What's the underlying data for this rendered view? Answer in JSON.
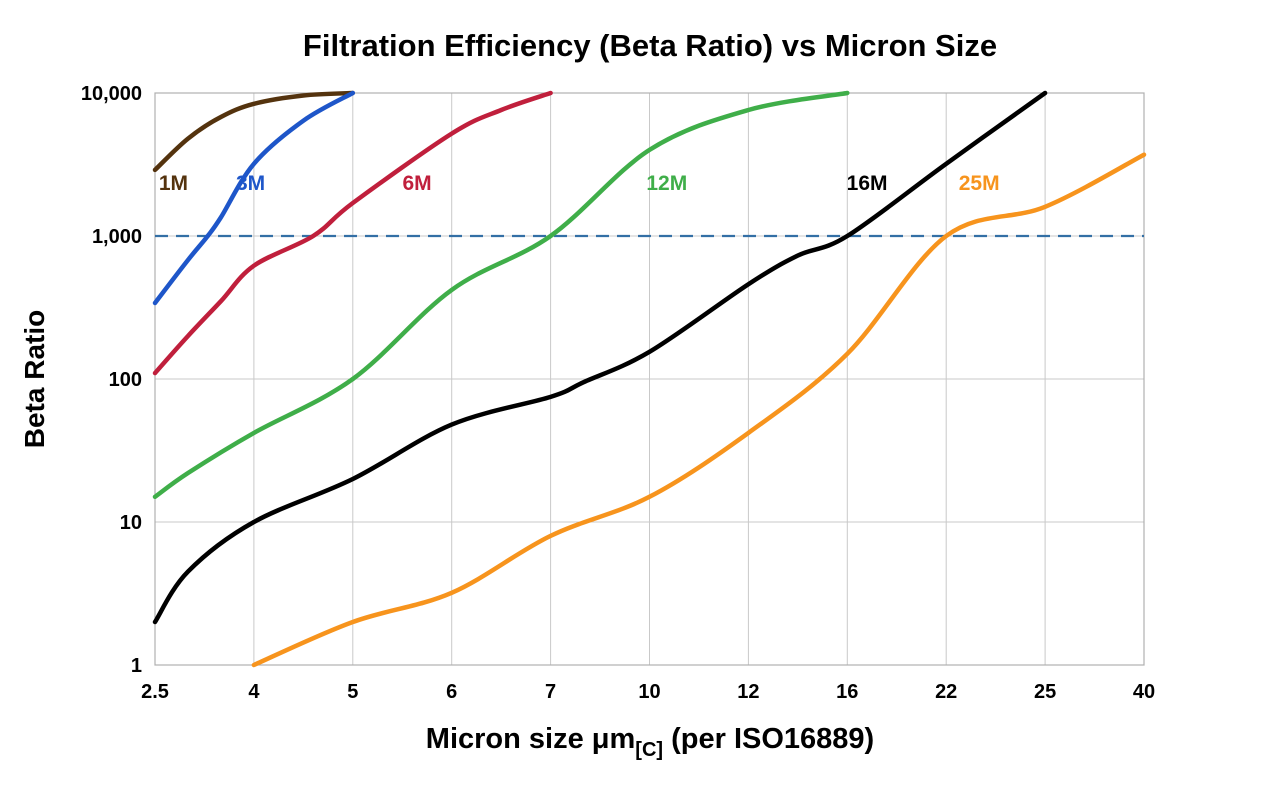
{
  "chart_data": {
    "type": "line",
    "title": "Filtration Efficiency (Beta Ratio) vs Micron Size",
    "xlabel": "Micron size μm[C] (per ISO16889)",
    "xlabel_main": "Micron size μm",
    "xlabel_sub": "[C]",
    "xlabel_rest": " (per ISO16889)",
    "ylabel": "Beta Ratio",
    "x_axis_note": "non-linear axis with equally spaced ticks",
    "x_ticks": [
      2.5,
      4,
      5,
      6,
      7,
      10,
      12,
      16,
      22,
      25,
      40
    ],
    "x_tick_labels": [
      "2.5",
      "4",
      "5",
      "6",
      "7",
      "10",
      "12",
      "16",
      "22",
      "25",
      "40"
    ],
    "y_scale": "log",
    "y_range": [
      1,
      10000
    ],
    "y_ticks": [
      1,
      10,
      100,
      1000,
      10000
    ],
    "y_tick_labels": [
      "1",
      "10",
      "100",
      "1,000",
      "10,000"
    ],
    "grid": true,
    "reference_line": {
      "y": 1000,
      "color": "#336fa5",
      "style": "dashed"
    },
    "series": [
      {
        "name": "1M",
        "color": "#54330e",
        "label_at": {
          "x": 2.78,
          "y": 2100
        },
        "points": [
          [
            2.5,
            2900
          ],
          [
            3,
            4800
          ],
          [
            3.5,
            6800
          ],
          [
            4,
            8400
          ],
          [
            4.5,
            9600
          ],
          [
            5,
            10000
          ]
        ]
      },
      {
        "name": "3M",
        "color": "#1e56c9",
        "label_at": {
          "x": 3.95,
          "y": 2100
        },
        "points": [
          [
            2.5,
            340
          ],
          [
            3,
            680
          ],
          [
            3.3,
            1000
          ],
          [
            3.5,
            1350
          ],
          [
            4,
            3200
          ],
          [
            4.5,
            6400
          ],
          [
            5,
            10000
          ]
        ]
      },
      {
        "name": "6M",
        "color": "#c01f3c",
        "label_at": {
          "x": 5.65,
          "y": 2100
        },
        "points": [
          [
            2.5,
            110
          ],
          [
            3,
            200
          ],
          [
            3.5,
            350
          ],
          [
            4,
            620
          ],
          [
            4.6,
            1000
          ],
          [
            5,
            1700
          ],
          [
            6,
            5200
          ],
          [
            6.5,
            7600
          ],
          [
            7,
            10000
          ]
        ]
      },
      {
        "name": "12M",
        "color": "#3fae49",
        "label_at": {
          "x": 10.35,
          "y": 2100
        },
        "points": [
          [
            2.5,
            15
          ],
          [
            3,
            22
          ],
          [
            4,
            42
          ],
          [
            5,
            100
          ],
          [
            6,
            420
          ],
          [
            7,
            1000
          ],
          [
            10,
            4000
          ],
          [
            12,
            7600
          ],
          [
            16,
            10000
          ]
        ]
      },
      {
        "name": "16M",
        "color": "#000000",
        "label_at": {
          "x": 17.2,
          "y": 2100
        },
        "points": [
          [
            2.5,
            2
          ],
          [
            3,
            4.5
          ],
          [
            4,
            10
          ],
          [
            5,
            20
          ],
          [
            6,
            48
          ],
          [
            7,
            75
          ],
          [
            8,
            95
          ],
          [
            10,
            155
          ],
          [
            12,
            460
          ],
          [
            14,
            730
          ],
          [
            16,
            1000
          ],
          [
            22,
            3200
          ],
          [
            25,
            10000
          ]
        ]
      },
      {
        "name": "25M",
        "color": "#f7941d",
        "label_at": {
          "x": 23.0,
          "y": 2100
        },
        "points": [
          [
            4,
            1
          ],
          [
            5,
            2
          ],
          [
            6,
            3.2
          ],
          [
            7,
            8
          ],
          [
            10,
            15
          ],
          [
            12,
            42
          ],
          [
            16,
            150
          ],
          [
            22,
            1000
          ],
          [
            25,
            1600
          ],
          [
            40,
            3700
          ]
        ]
      }
    ]
  }
}
